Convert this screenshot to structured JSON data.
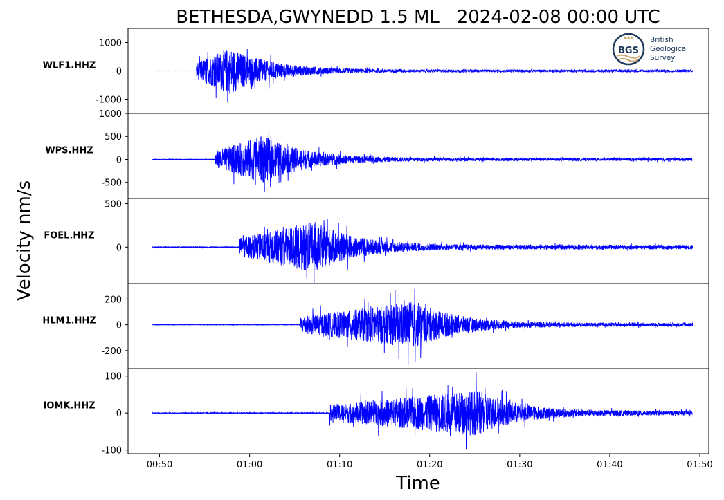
{
  "chart_data": {
    "type": "line",
    "title": "BETHESDA,GWYNEDD 1.5 ML   2024-02-08 00:00 UTC",
    "ylabel": "Velocity nm/s",
    "xlabel": "Time",
    "x_range_minutes": [
      46.5,
      111
    ],
    "x_ticks": [
      {
        "value": 50,
        "label": "00:50"
      },
      {
        "value": 60,
        "label": "01:00"
      },
      {
        "value": 70,
        "label": "01:10"
      },
      {
        "value": 80,
        "label": "01:20"
      },
      {
        "value": 90,
        "label": "01:30"
      },
      {
        "value": 100,
        "label": "01:40"
      },
      {
        "value": 110,
        "label": "01:50"
      }
    ],
    "grid": false,
    "line_color": "#0000ff",
    "logo": {
      "abbr": "BGS",
      "lines": [
        "British",
        "Geological",
        "Survey"
      ]
    },
    "panels": [
      {
        "station": "WLF1.HHZ",
        "ylim": [
          -1500,
          1500
        ],
        "yticks": [
          {
            "value": 1000,
            "label": "1000"
          },
          {
            "value": 0,
            "label": "0"
          },
          {
            "value": -1000,
            "label": "-1000"
          }
        ],
        "trace_start": 49.2,
        "trace_end": 109.2,
        "onset": 54.1,
        "peak_time": 57.8,
        "peak_amplitude": 1500,
        "noise_amplitude": 6,
        "coda_amplitude": 80
      },
      {
        "station": "WPS.HHZ",
        "ylim": [
          -850,
          1000
        ],
        "yticks": [
          {
            "value": 1000,
            "label": "1000"
          },
          {
            "value": 500,
            "label": "500"
          },
          {
            "value": 0,
            "label": "0"
          },
          {
            "value": -500,
            "label": "-500"
          }
        ],
        "trace_start": 49.2,
        "trace_end": 109.2,
        "onset": 56.2,
        "peak_time": 61.5,
        "peak_amplitude": 950,
        "noise_amplitude": 10,
        "coda_amplitude": 60
      },
      {
        "station": "FOEL.HHZ",
        "ylim": [
          -420,
          560
        ],
        "yticks": [
          {
            "value": 500,
            "label": "500"
          },
          {
            "value": 0,
            "label": "0"
          }
        ],
        "trace_start": 49.2,
        "trace_end": 109.2,
        "onset": 58.9,
        "peak_time": 67.2,
        "peak_amplitude": 540,
        "noise_amplitude": 8,
        "coda_amplitude": 45
      },
      {
        "station": "HLM1.HHZ",
        "ylim": [
          -340,
          320
        ],
        "yticks": [
          {
            "value": 200,
            "label": "200"
          },
          {
            "value": 0,
            "label": "0"
          },
          {
            "value": -200,
            "label": "-200"
          }
        ],
        "trace_start": 49.2,
        "trace_end": 109.2,
        "onset": 65.6,
        "peak_time": 78.5,
        "peak_amplitude": 330,
        "noise_amplitude": 3,
        "coda_amplitude": 25
      },
      {
        "station": "IOMK.HHZ",
        "ylim": [
          -110,
          120
        ],
        "yticks": [
          {
            "value": 100,
            "label": "100"
          },
          {
            "value": 0,
            "label": "0"
          },
          {
            "value": -100,
            "label": "-100"
          }
        ],
        "trace_start": 49.2,
        "trace_end": 109.2,
        "onset": 68.9,
        "peak_time": 85.3,
        "peak_amplitude": 112,
        "noise_amplitude": 2,
        "coda_amplitude": 10
      }
    ]
  }
}
